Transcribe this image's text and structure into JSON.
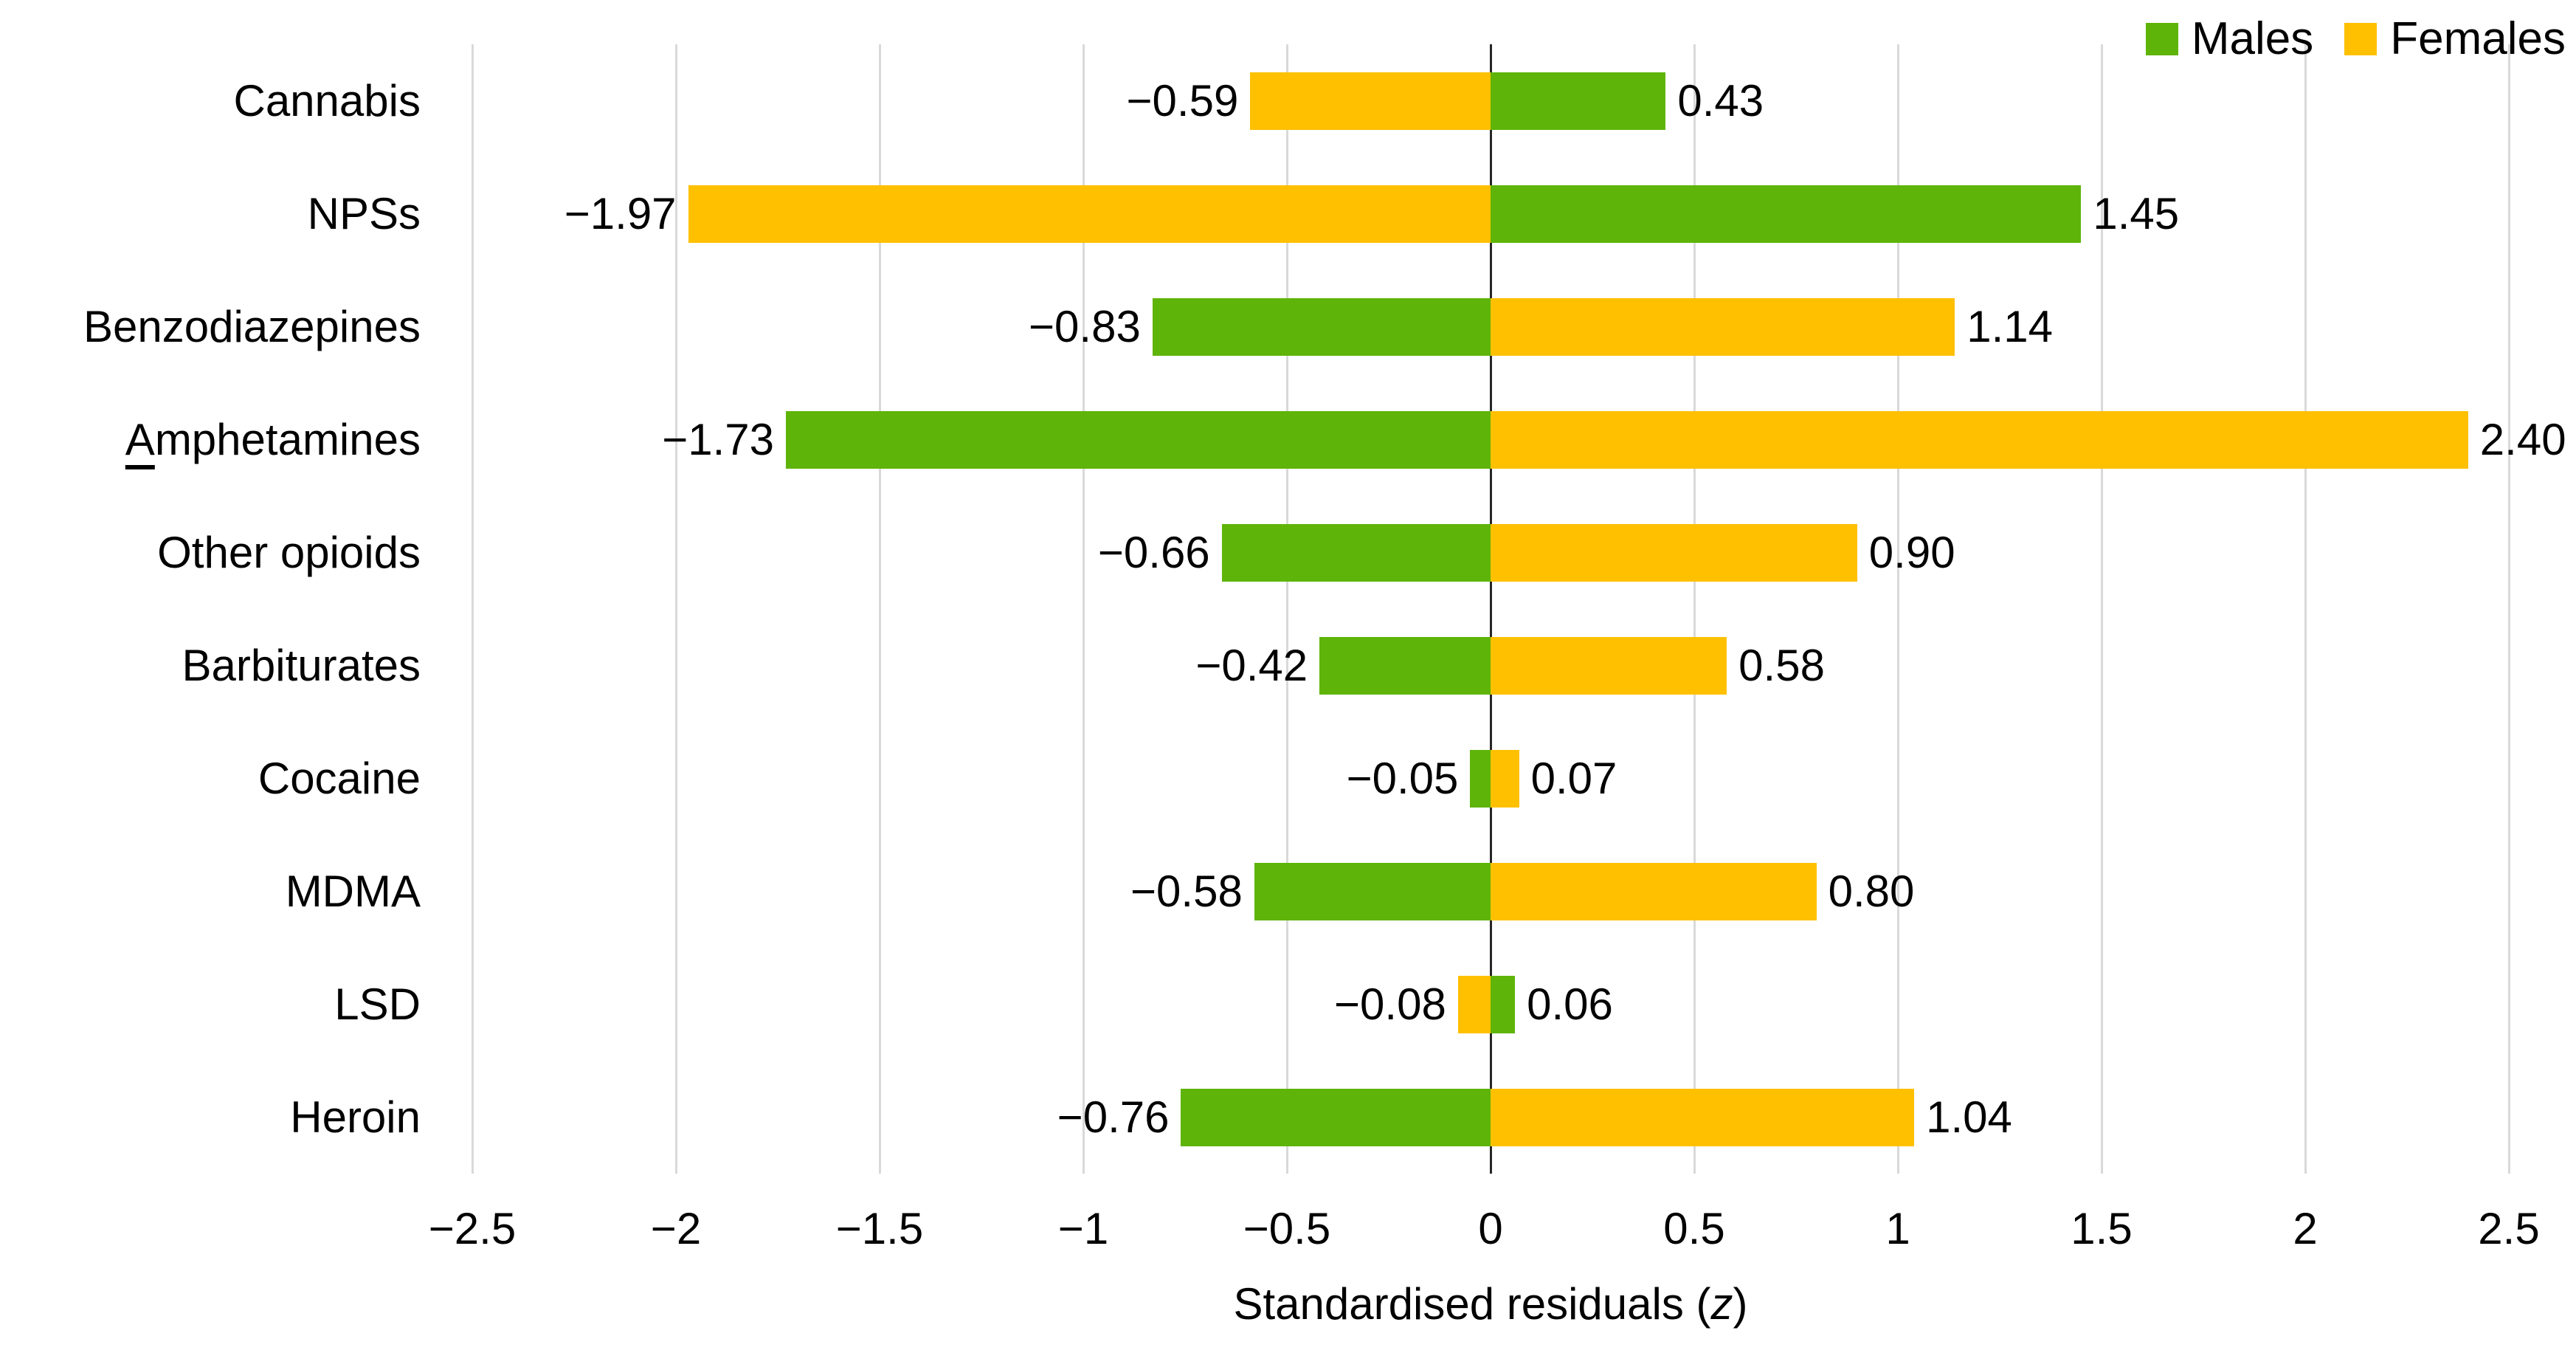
{
  "legend": {
    "position": "top-right",
    "items": [
      {
        "label": "Males",
        "color": "#5EB408"
      },
      {
        "label": "Females",
        "color": "#FFC000"
      }
    ]
  },
  "axis": {
    "title_prefix": "Standardised residuals (",
    "title_variable": "z",
    "title_suffix": ")",
    "tick_labels": [
      "−2.5",
      "−2",
      "−1.5",
      "−1",
      "−0.5",
      "0",
      "0.5",
      "1",
      "1.5",
      "2",
      "2.5"
    ],
    "tick_values": [
      -2.5,
      -2,
      -1.5,
      -1,
      -0.5,
      0,
      0.5,
      1,
      1.5,
      2,
      2.5
    ]
  },
  "chart_data": {
    "type": "bar",
    "orientation": "horizontal-diverging",
    "title": "",
    "xlabel": "Standardised residuals (z)",
    "ylabel": "",
    "xlim": [
      -2.5,
      2.5
    ],
    "grid": true,
    "legend_position": "top-right",
    "categories": [
      "Cannabis",
      "NPSs",
      "Benzodiazepines",
      "Amphetamines",
      "Other opioids",
      "Barbiturates",
      "Cocaine",
      "MDMA",
      "LSD",
      "Heroin"
    ],
    "series": [
      {
        "name": "Males",
        "color": "#5EB408",
        "values": [
          0.43,
          1.45,
          -0.83,
          -1.73,
          -0.66,
          -0.42,
          -0.05,
          -0.58,
          0.06,
          -0.76
        ],
        "labels": [
          "0.43",
          "1.45",
          "−0.83",
          "−1.73",
          "−0.66",
          "−0.42",
          "−0.05",
          "−0.58",
          "0.06",
          "−0.76"
        ]
      },
      {
        "name": "Females",
        "color": "#FFC000",
        "values": [
          -0.59,
          -1.97,
          1.14,
          2.4,
          0.9,
          0.58,
          0.07,
          0.8,
          -0.08,
          1.04
        ],
        "labels": [
          "−0.59",
          "−1.97",
          "1.14",
          "2.40",
          "0.90",
          "0.58",
          "0.07",
          "0.80",
          "−0.08",
          "1.04"
        ]
      }
    ],
    "annotations": {
      "underlined_first_letter_category": "Amphetamines"
    }
  },
  "style": {
    "gridline_color": "#D9D9D9",
    "zero_line_color": "#262626",
    "text_color": "#000000",
    "background": "#FFFFFF"
  }
}
